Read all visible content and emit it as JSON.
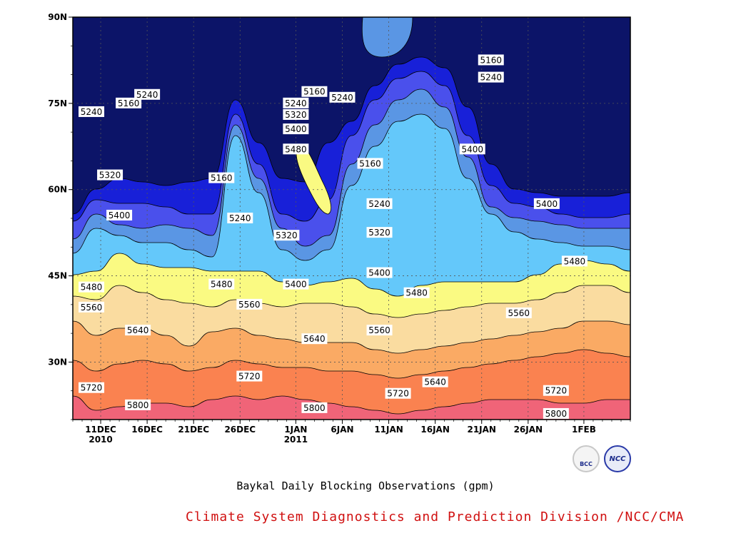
{
  "chart_data": {
    "type": "contour",
    "title": "Baykal Daily Blocking Observations (gpm)",
    "x_ticks": [
      "11DEC",
      "16DEC",
      "21DEC",
      "26DEC",
      "1JAN",
      "6JAN",
      "11JAN",
      "16JAN",
      "21JAN",
      "26JAN",
      "1FEB"
    ],
    "x_year_labels": [
      {
        "tick": "11DEC",
        "year": "2010"
      },
      {
        "tick": "1JAN",
        "year": "2011"
      }
    ],
    "x_range": [
      "2010-12-08",
      "2011-02-06"
    ],
    "y_ticks": [
      "30N",
      "45N",
      "60N",
      "75N",
      "90N"
    ],
    "y_range": [
      20,
      90
    ],
    "grid": "dotted",
    "contour_levels": [
      5160,
      5240,
      5320,
      5400,
      5480,
      5560,
      5640,
      5720,
      5800
    ],
    "contour_labels": [
      {
        "value": "5240",
        "date": "2010-12-10",
        "lat": 73.5
      },
      {
        "value": "5160",
        "date": "2010-12-14",
        "lat": 75.0
      },
      {
        "value": "5240",
        "date": "2010-12-16",
        "lat": 76.5
      },
      {
        "value": "5320",
        "date": "2010-12-12",
        "lat": 62.5
      },
      {
        "value": "5400",
        "date": "2010-12-13",
        "lat": 55.5
      },
      {
        "value": "5160",
        "date": "2010-12-24",
        "lat": 62.0
      },
      {
        "value": "5240",
        "date": "2010-12-26",
        "lat": 55.0
      },
      {
        "value": "5160",
        "date": "2011-01-03",
        "lat": 77.0
      },
      {
        "value": "5240",
        "date": "2011-01-01",
        "lat": 75.0
      },
      {
        "value": "5320",
        "date": "2011-01-01",
        "lat": 73.0
      },
      {
        "value": "5400",
        "date": "2011-01-01",
        "lat": 70.5
      },
      {
        "value": "5480",
        "date": "2011-01-01",
        "lat": 67.0
      },
      {
        "value": "5320",
        "date": "2010-12-31",
        "lat": 52.0
      },
      {
        "value": "5240",
        "date": "2011-01-06",
        "lat": 76.0
      },
      {
        "value": "5160",
        "date": "2011-01-09",
        "lat": 64.5
      },
      {
        "value": "5240",
        "date": "2011-01-10",
        "lat": 57.5
      },
      {
        "value": "5320",
        "date": "2011-01-10",
        "lat": 52.5
      },
      {
        "value": "5400",
        "date": "2011-01-10",
        "lat": 45.5
      },
      {
        "value": "5160",
        "date": "2011-01-22",
        "lat": 82.5
      },
      {
        "value": "5240",
        "date": "2011-01-22",
        "lat": 79.5
      },
      {
        "value": "5400",
        "date": "2011-01-20",
        "lat": 67.0
      },
      {
        "value": "5400",
        "date": "2011-01-28",
        "lat": 57.5
      },
      {
        "value": "5480",
        "date": "2011-01-31",
        "lat": 47.5
      },
      {
        "value": "5480",
        "date": "2010-12-10",
        "lat": 43.0
      },
      {
        "value": "5560",
        "date": "2010-12-10",
        "lat": 39.5
      },
      {
        "value": "5480",
        "date": "2010-12-24",
        "lat": 43.5
      },
      {
        "value": "5560",
        "date": "2010-12-27",
        "lat": 40.0
      },
      {
        "value": "5400",
        "date": "2011-01-01",
        "lat": 43.5
      },
      {
        "value": "5480",
        "date": "2011-01-14",
        "lat": 42.0
      },
      {
        "value": "5560",
        "date": "2011-01-10",
        "lat": 35.5
      },
      {
        "value": "5560",
        "date": "2011-01-25",
        "lat": 38.5
      },
      {
        "value": "5640",
        "date": "2010-12-15",
        "lat": 35.5
      },
      {
        "value": "5640",
        "date": "2011-01-03",
        "lat": 34.0
      },
      {
        "value": "5640",
        "date": "2011-01-16",
        "lat": 26.5
      },
      {
        "value": "5720",
        "date": "2010-12-10",
        "lat": 25.5
      },
      {
        "value": "5720",
        "date": "2010-12-27",
        "lat": 27.5
      },
      {
        "value": "5720",
        "date": "2011-01-12",
        "lat": 24.5
      },
      {
        "value": "5720",
        "date": "2011-01-29",
        "lat": 25.0
      },
      {
        "value": "5800",
        "date": "2010-12-15",
        "lat": 22.5
      },
      {
        "value": "5800",
        "date": "2011-01-03",
        "lat": 22.0
      },
      {
        "value": "5800",
        "date": "2011-01-29",
        "lat": 21.0
      }
    ],
    "colors": {
      "lt5160": "#0c1468",
      "5160": "#1820d8",
      "5240": "#4a50ec",
      "5320": "#5a96e4",
      "5400": "#64c8fa",
      "5480": "#fafa82",
      "5560": "#fadca0",
      "5640": "#faaa64",
      "5720": "#fa8250",
      "5800": "#f06478"
    }
  },
  "credit": "Climate System Diagnostics and Prediction Division /NCC/CMA",
  "logos": {
    "left_text": "BCC",
    "right_text": "NCC"
  }
}
